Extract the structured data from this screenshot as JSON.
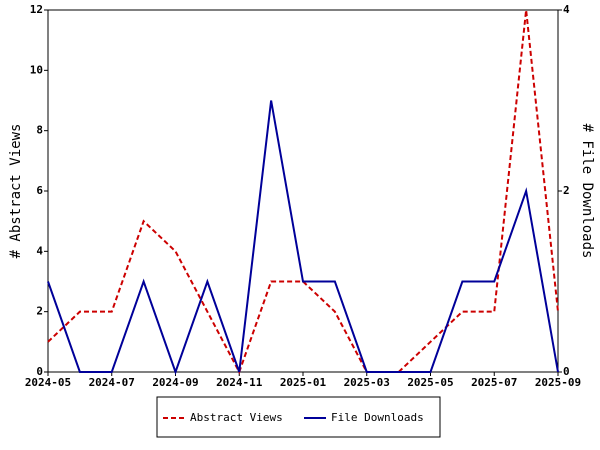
{
  "chart_data": {
    "type": "line",
    "x": [
      "2024-05",
      null,
      "2024-07",
      null,
      "2024-09",
      null,
      "2024-11",
      null,
      "2025-01",
      null,
      "2025-03",
      null,
      "2025-05",
      null,
      "2025-07",
      null,
      "2025-09"
    ],
    "y_label": "# Abstract Views",
    "y2_label": "# File Downloads",
    "ylim": [
      0,
      12
    ],
    "yticks": [
      0,
      2,
      4,
      6,
      8,
      10,
      12
    ],
    "y2lim": [
      0,
      4
    ],
    "y2ticks": [
      0,
      2,
      4
    ],
    "legend": "bottom",
    "series": [
      {
        "name": "Abstract Views",
        "color": "#cc0000",
        "dash": true,
        "values": [
          1,
          2,
          2,
          5,
          4,
          2,
          0,
          3,
          3,
          2,
          0,
          0,
          1,
          2,
          2,
          12,
          2
        ]
      },
      {
        "name": "File Downloads",
        "color": "#000099",
        "dash": false,
        "axis": "y2",
        "values": [
          1,
          0,
          0,
          1,
          0,
          1,
          0,
          3,
          1,
          1,
          0,
          0,
          0,
          1,
          1,
          2,
          0
        ]
      }
    ]
  }
}
